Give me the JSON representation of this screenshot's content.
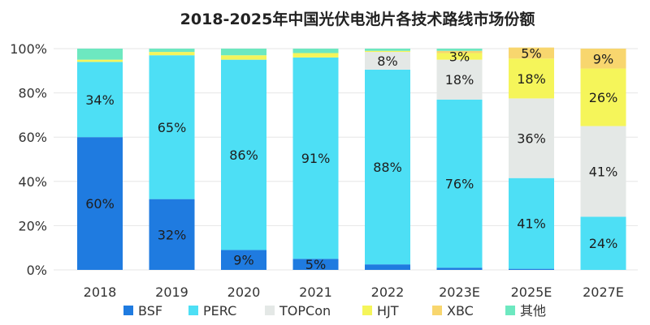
{
  "chart_data": {
    "type": "bar",
    "stacked": true,
    "title": "2018-2025年中国光伏电池片各技术路线市场份额",
    "categories": [
      "2018",
      "2019",
      "2020",
      "2021",
      "2022",
      "2023E",
      "2025E",
      "2027E"
    ],
    "ylim": [
      0,
      100
    ],
    "yticks": [
      "0%",
      "20%",
      "40%",
      "60%",
      "80%",
      "100%"
    ],
    "grid": true,
    "legend_position": "bottom",
    "series": [
      {
        "name": "BSF",
        "color": "#1f7be0",
        "values": [
          60,
          32,
          9,
          5,
          2.5,
          1,
          0.5,
          0
        ],
        "labels": [
          "60%",
          "32%",
          "9%",
          "5%",
          "",
          "",
          "",
          ""
        ]
      },
      {
        "name": "PERC",
        "color": "#4ddff5",
        "values": [
          34,
          65,
          86,
          91,
          88,
          76,
          41,
          24
        ],
        "labels": [
          "34%",
          "65%",
          "86%",
          "91%",
          "88%",
          "76%",
          "41%",
          "24%"
        ]
      },
      {
        "name": "TOPCon",
        "color": "#e4e8e6",
        "values": [
          0,
          0,
          0,
          0,
          8,
          18,
          36,
          41
        ],
        "labels": [
          "",
          "",
          "",
          "",
          "8%",
          "18%",
          "36%",
          "41%"
        ]
      },
      {
        "name": "HJT",
        "color": "#f5f55a",
        "values": [
          1,
          1.5,
          2,
          2,
          0.5,
          3,
          18,
          26
        ],
        "labels": [
          "",
          "",
          "",
          "",
          "",
          "3%",
          "18%",
          "26%"
        ]
      },
      {
        "name": "XBC",
        "color": "#f8d66e",
        "values": [
          0,
          0,
          0,
          0,
          0,
          1,
          5,
          9
        ],
        "labels": [
          "",
          "",
          "",
          "",
          "",
          "",
          "5%",
          "9%"
        ]
      },
      {
        "name": "其他",
        "color": "#6de8c0",
        "values": [
          5,
          1.5,
          3,
          2,
          1,
          1,
          0,
          0
        ],
        "labels": [
          "",
          "",
          "",
          "",
          "",
          "",
          "",
          ""
        ]
      }
    ]
  }
}
